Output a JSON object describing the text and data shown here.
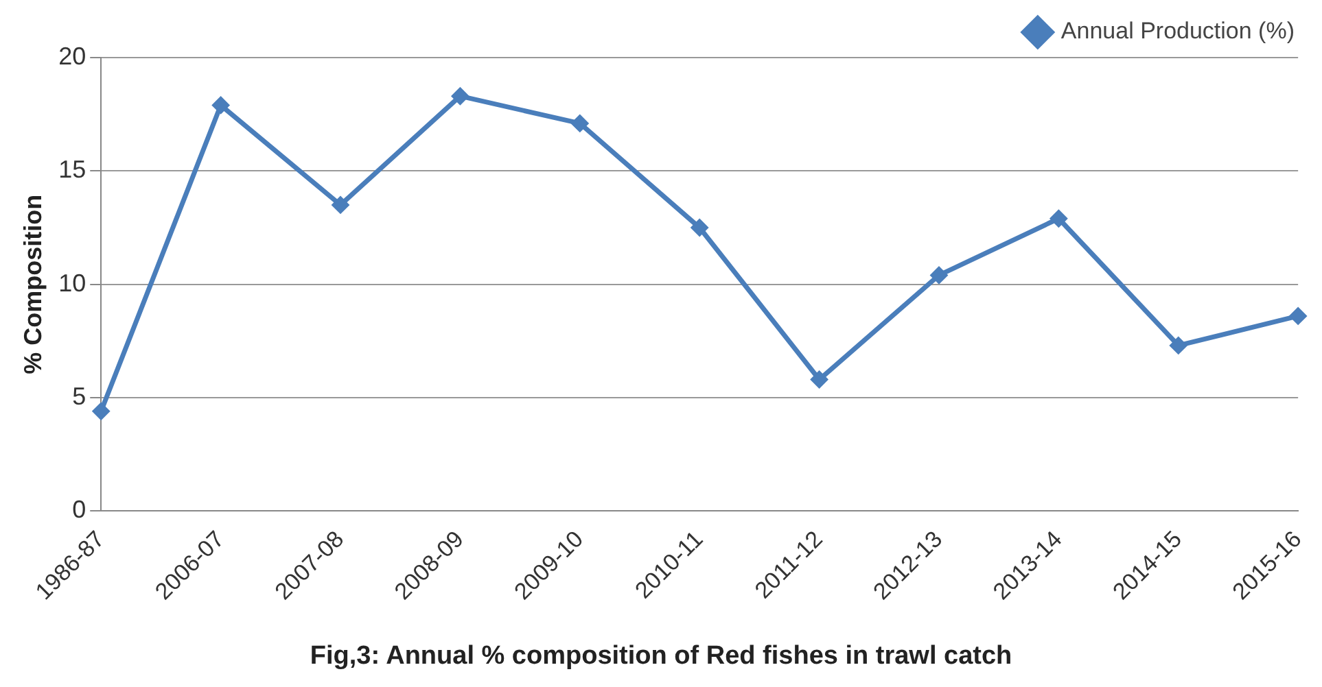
{
  "chart_data": {
    "type": "line",
    "title": "Fig,3: Annual % composition of Red fishes in trawl catch",
    "ylabel": "% Composition",
    "categories": [
      "1986-87",
      "2006-07",
      "2007-08",
      "2008-09",
      "2009-10",
      "2010-11",
      "2011-12",
      "2012-13",
      "2013-14",
      "2014-15",
      "2015-16"
    ],
    "series": [
      {
        "name": "Annual Production (%)",
        "color": "#4a7ebb",
        "values": [
          4.4,
          17.9,
          13.5,
          18.3,
          17.1,
          12.5,
          5.8,
          10.4,
          12.9,
          7.3,
          8.6
        ]
      }
    ],
    "ylim": [
      0,
      20
    ],
    "yticks": [
      0,
      5,
      10,
      15,
      20
    ],
    "grid": "y",
    "legend": "top right",
    "marker": "diamond",
    "line_style": "solid"
  }
}
